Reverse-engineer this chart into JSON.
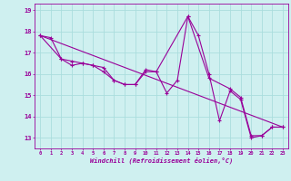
{
  "xlabel": "Windchill (Refroidissement éolien,°C)",
  "bg_color": "#cff0f0",
  "line_color": "#990099",
  "grid_color": "#aadddd",
  "yticks": [
    13,
    14,
    15,
    16,
    17,
    18,
    19
  ],
  "xticks": [
    0,
    1,
    2,
    3,
    4,
    5,
    6,
    7,
    8,
    9,
    10,
    11,
    12,
    13,
    14,
    15,
    16,
    17,
    18,
    19,
    20,
    21,
    22,
    23
  ],
  "ylim": [
    12.5,
    19.3
  ],
  "xlim": [
    -0.5,
    23.5
  ],
  "series1": {
    "x": [
      0,
      1,
      2,
      3,
      4,
      5,
      6,
      7,
      8,
      9,
      10,
      11,
      12,
      13,
      14,
      15,
      16,
      17,
      18,
      19,
      20,
      21,
      22,
      23
    ],
    "y": [
      17.8,
      17.7,
      16.7,
      16.6,
      16.5,
      16.4,
      16.1,
      15.7,
      15.5,
      15.5,
      16.1,
      16.1,
      15.1,
      15.7,
      18.7,
      17.8,
      16.0,
      13.8,
      15.2,
      14.8,
      13.0,
      13.1,
      13.5,
      13.5
    ]
  },
  "series2": {
    "x": [
      0,
      2,
      3,
      4,
      5,
      6,
      7,
      8,
      9,
      10,
      11,
      14,
      16,
      18,
      19,
      20,
      21,
      22,
      23
    ],
    "y": [
      17.8,
      16.7,
      16.4,
      16.5,
      16.4,
      16.3,
      15.7,
      15.5,
      15.5,
      16.2,
      16.1,
      18.7,
      15.8,
      15.3,
      14.9,
      13.1,
      13.1,
      13.5,
      13.5
    ]
  },
  "trendline": {
    "x": [
      0,
      23
    ],
    "y": [
      17.8,
      13.5
    ]
  }
}
